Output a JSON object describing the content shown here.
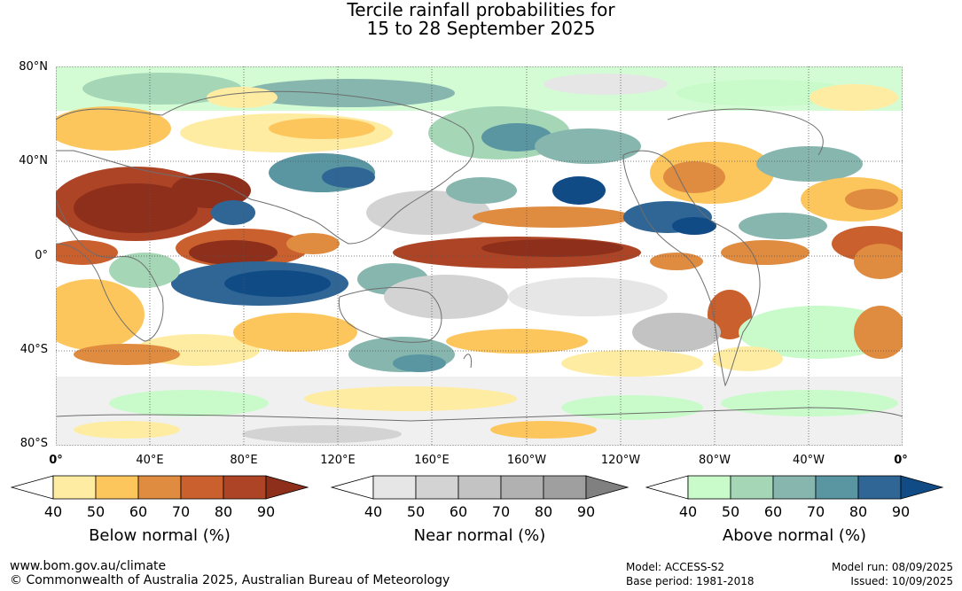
{
  "title": {
    "line1": "Tercile rainfall probabilities for",
    "line2": "15 to 28 September 2025"
  },
  "map": {
    "lat_labels": [
      "80°N",
      "40°N",
      "0°",
      "40°S",
      "80°S"
    ],
    "lon_labels": [
      "0°",
      "40°E",
      "80°E",
      "120°E",
      "160°E",
      "160°W",
      "120°W",
      "80°W",
      "40°W",
      "0°"
    ],
    "colors": {
      "land_outline": "#6e6e6e",
      "grid": "#555555"
    }
  },
  "legends": [
    {
      "title": "Below normal (%)",
      "ticks": [
        "40",
        "50",
        "60",
        "70",
        "80",
        "90"
      ],
      "colors": [
        "#ffeca3",
        "#fdc65d",
        "#df8b40",
        "#c9602e",
        "#ad4426",
        "#8e2f1c"
      ]
    },
    {
      "title": "Near normal (%)",
      "ticks": [
        "40",
        "50",
        "60",
        "70",
        "80",
        "90"
      ],
      "colors": [
        "#e6e6e6",
        "#d3d3d3",
        "#c3c3c3",
        "#b1b1b1",
        "#9f9f9f",
        "#808080"
      ]
    },
    {
      "title": "Above normal (%)",
      "ticks": [
        "40",
        "50",
        "60",
        "70",
        "80",
        "90"
      ],
      "colors": [
        "#c8fbc9",
        "#a5d7b7",
        "#86b6ae",
        "#5a95a2",
        "#2f6696",
        "#104b86"
      ]
    }
  ],
  "footer": {
    "url": "www.bom.gov.au/climate",
    "copyright": "© Commonwealth of Australia 2025, Australian Bureau of Meteorology",
    "model": "Model: ACCESS-S2",
    "base_period": "Base period: 1981-2018",
    "model_run": "Model run: 08/09/2025",
    "issued": "Issued: 10/09/2025"
  }
}
